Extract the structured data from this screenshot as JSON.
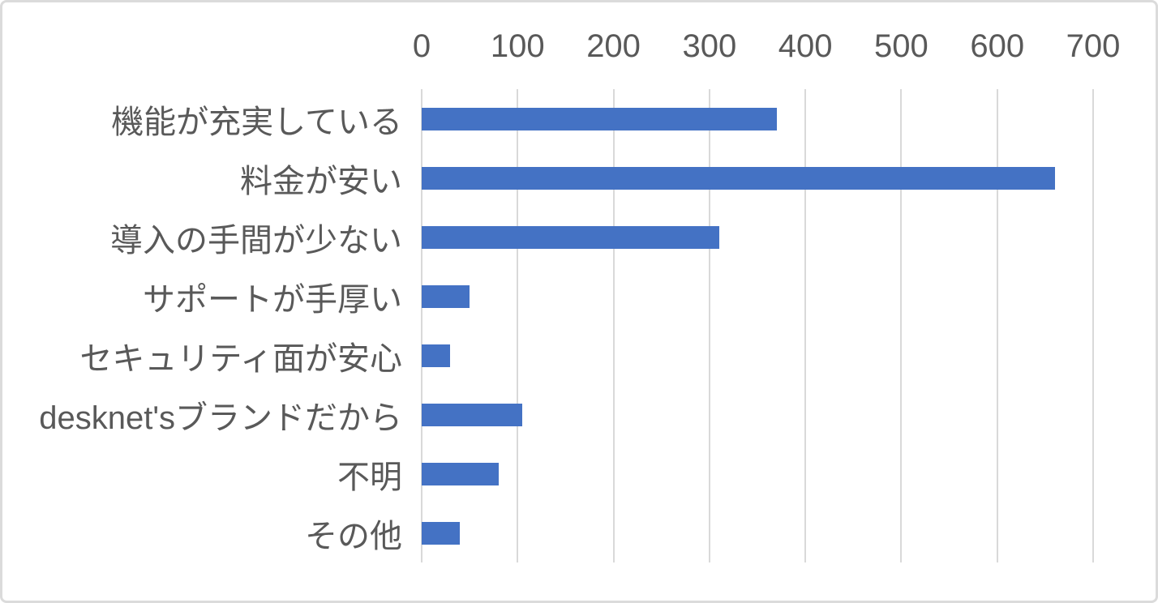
{
  "chart_data": {
    "type": "bar",
    "orientation": "horizontal",
    "title": "",
    "xlabel": "",
    "ylabel": "",
    "categories": [
      "機能が充実している",
      "料金が安い",
      "導入の手間が少ない",
      "サポートが手厚い",
      "セキュリティ面が安心",
      "desknet'sブランドだから",
      "不明",
      "その他"
    ],
    "values": [
      370,
      660,
      310,
      50,
      30,
      105,
      80,
      40
    ],
    "xlim": [
      0,
      700
    ],
    "x_ticks": [
      0,
      100,
      200,
      300,
      400,
      500,
      600,
      700
    ],
    "tick_position": "top",
    "grid": true,
    "legend": false,
    "colors": {
      "bar": "#4472C4",
      "gridline": "#d9d9d9",
      "text": "#595959",
      "canvas_border": "#dbdbdb",
      "background": "#ffffff"
    }
  }
}
